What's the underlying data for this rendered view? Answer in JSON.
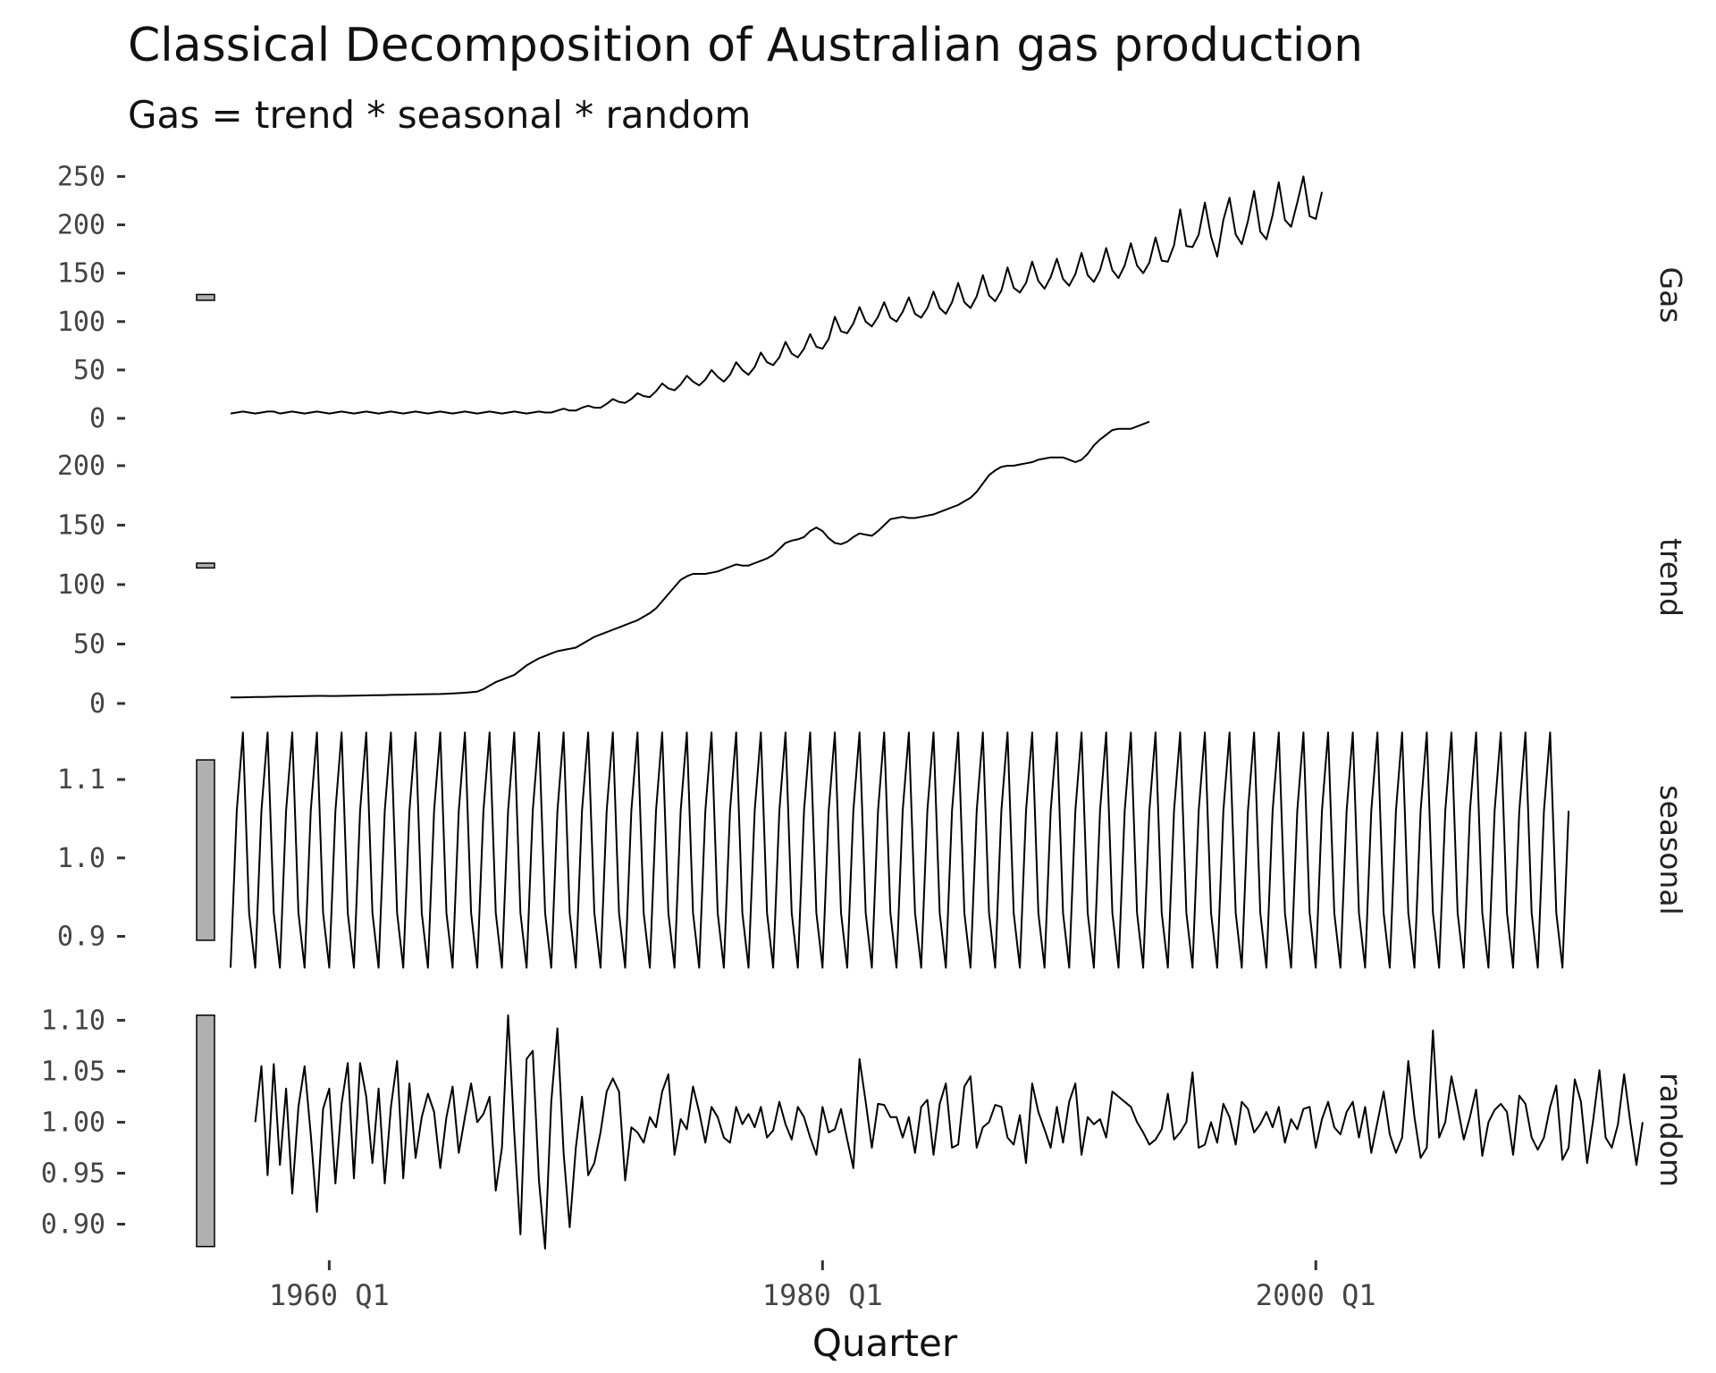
{
  "title": "Classical Decomposition of Australian gas production",
  "subtitle": "Gas = trend * seasonal * random",
  "chart_data": {
    "type": "line",
    "title": "Classical Decomposition of Australian gas production",
    "subtitle": "Gas = trend * seasonal * random",
    "xlabel": "Quarter",
    "x_start": 1956.0,
    "x_end": 2010.5,
    "x_ticks": [
      {
        "value": 1960,
        "label": "1960 Q1"
      },
      {
        "value": 1980,
        "label": "1980 Q1"
      },
      {
        "value": 2000,
        "label": "2000 Q1"
      }
    ],
    "panels": [
      {
        "name": "Gas",
        "ylim": [
          0,
          255
        ],
        "yticks": [
          0,
          50,
          100,
          150,
          200,
          250
        ],
        "ytick_labels": [
          "0",
          "50",
          "100",
          "150",
          "200",
          "250"
        ],
        "scale_bar": [
          122,
          128
        ],
        "values": [
          5,
          6,
          7,
          6,
          5,
          6,
          7,
          7,
          5,
          6,
          7,
          6,
          5,
          6,
          7,
          6,
          5,
          6,
          7,
          6,
          5,
          6,
          7,
          6,
          5,
          6,
          7,
          6,
          5,
          6,
          7,
          6,
          5,
          6,
          7,
          6,
          5,
          6,
          7,
          6,
          5,
          6,
          7,
          6,
          5,
          6,
          7,
          6,
          5,
          6,
          7,
          6,
          6,
          8,
          10,
          8,
          8,
          11,
          13,
          11,
          11,
          15,
          20,
          17,
          16,
          20,
          26,
          23,
          22,
          28,
          36,
          31,
          29,
          35,
          44,
          38,
          34,
          40,
          50,
          43,
          38,
          45,
          58,
          50,
          45,
          53,
          68,
          58,
          55,
          63,
          79,
          67,
          63,
          72,
          87,
          74,
          72,
          82,
          105,
          90,
          88,
          98,
          115,
          100,
          95,
          105,
          120,
          104,
          100,
          110,
          125,
          108,
          104,
          114,
          131,
          114,
          108,
          120,
          140,
          120,
          114,
          126,
          148,
          127,
          121,
          132,
          156,
          135,
          130,
          140,
          162,
          142,
          134,
          146,
          165,
          144,
          137,
          149,
          171,
          148,
          141,
          153,
          176,
          153,
          145,
          158,
          181,
          158,
          150,
          161,
          187,
          163,
          162,
          179,
          216,
          178,
          177,
          190,
          223,
          188,
          167,
          205,
          228,
          190,
          180,
          204,
          235,
          193,
          185,
          210,
          244,
          205,
          198,
          223,
          250,
          209,
          206,
          234
        ]
      },
      {
        "name": "trend",
        "ylim": [
          0,
          212
        ],
        "yticks": [
          0,
          50,
          100,
          150,
          200
        ],
        "ytick_labels": [
          "0",
          "50",
          "100",
          "150",
          "200"
        ],
        "scale_bar": [
          114,
          118
        ],
        "values": [
          5,
          5.1,
          5.2,
          5.3,
          5.4,
          5.5,
          5.6,
          5.7,
          5.8,
          5.9,
          6,
          6.1,
          6.2,
          6.3,
          6.4,
          6.4,
          6.3,
          6.3,
          6.4,
          6.5,
          6.6,
          6.7,
          6.8,
          6.9,
          7,
          7.1,
          7.2,
          7.3,
          7.4,
          7.5,
          7.6,
          7.7,
          7.8,
          7.9,
          8,
          8.2,
          8.4,
          8.7,
          9,
          9.5,
          10,
          12,
          15,
          18,
          20,
          22,
          24,
          28,
          32,
          35,
          38,
          40,
          42,
          44,
          45,
          46,
          47,
          50,
          53,
          56,
          58,
          60,
          62,
          64,
          66,
          68,
          70,
          73,
          76,
          80,
          86,
          92,
          98,
          104,
          107,
          109,
          109,
          109,
          110,
          111,
          113,
          115,
          117,
          116,
          116,
          118,
          120,
          122,
          125,
          130,
          135,
          137,
          138,
          140,
          145,
          148,
          145,
          139,
          135,
          134,
          136,
          140,
          143,
          142,
          141,
          145,
          150,
          155,
          156,
          157,
          156,
          156,
          157,
          158,
          159,
          161,
          163,
          165,
          167,
          170,
          173,
          178,
          185,
          192,
          196,
          199,
          200,
          200,
          201,
          202,
          203,
          205,
          206,
          207,
          207,
          207,
          205,
          203,
          205,
          210,
          217,
          222,
          226,
          230,
          231,
          231,
          231,
          233,
          235,
          237
        ]
      },
      {
        "name": "seasonal",
        "ylim": [
          0.855,
          1.165
        ],
        "yticks": [
          0.9,
          1.0,
          1.1
        ],
        "ytick_labels": [
          "0.9",
          "1.0",
          "1.1"
        ],
        "scale_bar": [
          0.895,
          1.125
        ],
        "pattern": [
          0.86,
          1.06,
          1.16,
          0.93
        ],
        "n_points": 218
      },
      {
        "name": "random",
        "ylim": [
          0.875,
          1.11
        ],
        "yticks": [
          0.9,
          0.95,
          1.0,
          1.05,
          1.1
        ],
        "ytick_labels": [
          "0.90",
          "0.95",
          "1.00",
          "1.05",
          "1.10"
        ],
        "scale_bar": [
          0.878,
          1.105
        ],
        "start": 1957.0,
        "values": [
          1.0,
          1.055,
          0.948,
          1.057,
          0.958,
          1.033,
          0.93,
          1.015,
          1.055,
          0.988,
          0.912,
          1.013,
          1.033,
          0.94,
          1.018,
          1.058,
          0.945,
          1.058,
          1.025,
          0.96,
          1.033,
          0.94,
          1.015,
          1.06,
          0.945,
          1.038,
          0.965,
          1.005,
          1.028,
          1.01,
          0.955,
          1.005,
          1.035,
          0.97,
          1.005,
          1.038,
          1.0,
          1.008,
          1.025,
          0.933,
          0.975,
          1.105,
          0.99,
          0.89,
          1.062,
          1.07,
          0.943,
          0.876,
          1.02,
          1.092,
          0.97,
          0.897,
          0.975,
          1.025,
          0.948,
          0.96,
          0.99,
          1.03,
          1.043,
          1.03,
          0.943,
          0.995,
          0.99,
          0.98,
          1.005,
          0.995,
          1.03,
          1.047,
          0.968,
          1.003,
          0.993,
          1.035,
          1.01,
          0.98,
          1.015,
          1.005,
          0.985,
          0.98,
          1.015,
          0.998,
          1.008,
          0.995,
          1.015,
          0.985,
          0.992,
          1.02,
          0.998,
          0.983,
          1.015,
          1.005,
          0.985,
          0.968,
          1.015,
          0.99,
          0.993,
          1.013,
          0.983,
          0.955,
          1.062,
          1.02,
          0.975,
          1.018,
          1.017,
          1.005,
          1.005,
          0.985,
          1.005,
          0.97,
          1.015,
          1.022,
          0.968,
          1.018,
          1.038,
          0.975,
          0.978,
          1.035,
          1.045,
          0.975,
          0.995,
          1.0,
          1.017,
          1.015,
          0.985,
          0.978,
          1.007,
          0.96,
          1.038,
          1.01,
          0.993,
          0.975,
          1.015,
          0.98,
          1.02,
          1.038,
          0.968,
          1.005,
          0.998,
          1.003,
          0.985,
          1.03,
          1.025,
          1.02,
          1.015,
          1.0,
          0.99,
          0.978,
          0.983,
          0.993,
          1.028,
          0.983,
          0.99,
          1.0,
          1.049,
          0.975,
          0.978,
          1.0,
          0.98,
          1.018,
          1.005,
          0.978,
          1.02,
          1.013,
          0.99,
          0.998,
          1.01,
          0.995,
          1.015,
          0.98,
          1.003,
          0.993,
          1.013,
          1.015,
          0.975,
          1.003,
          1.02,
          0.995,
          0.988,
          1.01,
          1.02,
          0.985,
          1.015,
          0.97,
          1.0,
          1.03,
          0.988,
          0.97,
          0.985,
          1.06,
          1.005,
          0.965,
          0.975,
          1.09,
          0.985,
          1.0,
          1.045,
          1.015,
          0.983,
          1.005,
          1.032,
          0.967,
          1.0,
          1.012,
          1.018,
          1.01,
          0.968,
          1.026,
          1.018,
          0.985,
          0.973,
          0.985,
          1.015,
          1.036,
          0.963,
          0.975,
          1.042,
          1.02,
          0.96,
          1.003,
          1.051,
          0.985,
          0.975,
          0.998,
          1.047,
          1.0,
          0.958,
          1.0
        ]
      }
    ]
  }
}
